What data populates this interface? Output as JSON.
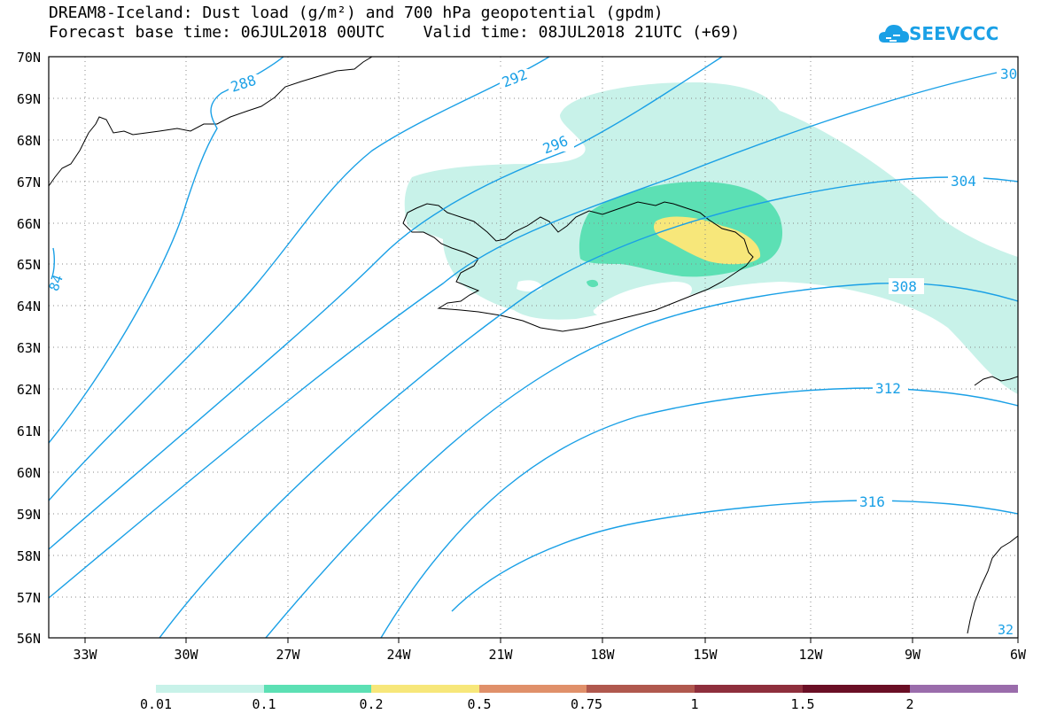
{
  "title_line1": "DREAM8-Iceland: Dust load (g/m²) and 700 hPa geopotential (gpdm)",
  "title_line2": "Forecast base time: 06JUL2018 00UTC    Valid time: 08JUL2018 21UTC (+69)",
  "logo_text": "SEEVCCC",
  "lat_labels": [
    "70N",
    "69N",
    "68N",
    "67N",
    "66N",
    "65N",
    "64N",
    "63N",
    "62N",
    "61N",
    "60N",
    "59N",
    "58N",
    "57N",
    "56N"
  ],
  "lon_labels": [
    "33W",
    "30W",
    "27W",
    "24W",
    "21W",
    "18W",
    "15W",
    "12W",
    "9W",
    "6W"
  ],
  "contour_labels": [
    "288",
    "292",
    "296",
    "304",
    "308",
    "312",
    "316",
    "30",
    "84",
    "32"
  ],
  "colorbar": {
    "labels": [
      "0.01",
      "0.1",
      "0.2",
      "0.5",
      "0.75",
      "1",
      "1.5",
      "2"
    ],
    "colors": [
      "#c8f2e9",
      "#5ce0b4",
      "#f7e77a",
      "#e0906a",
      "#b0584e",
      "#8e2f3c",
      "#6a0f25",
      "#3d2a18",
      "#9a6cab"
    ]
  },
  "colors": {
    "contour": "#1aa0e6",
    "dust_low": "#c8f2e9",
    "dust_mid": "#5ce0b4",
    "dust_high": "#f7e77a"
  }
}
